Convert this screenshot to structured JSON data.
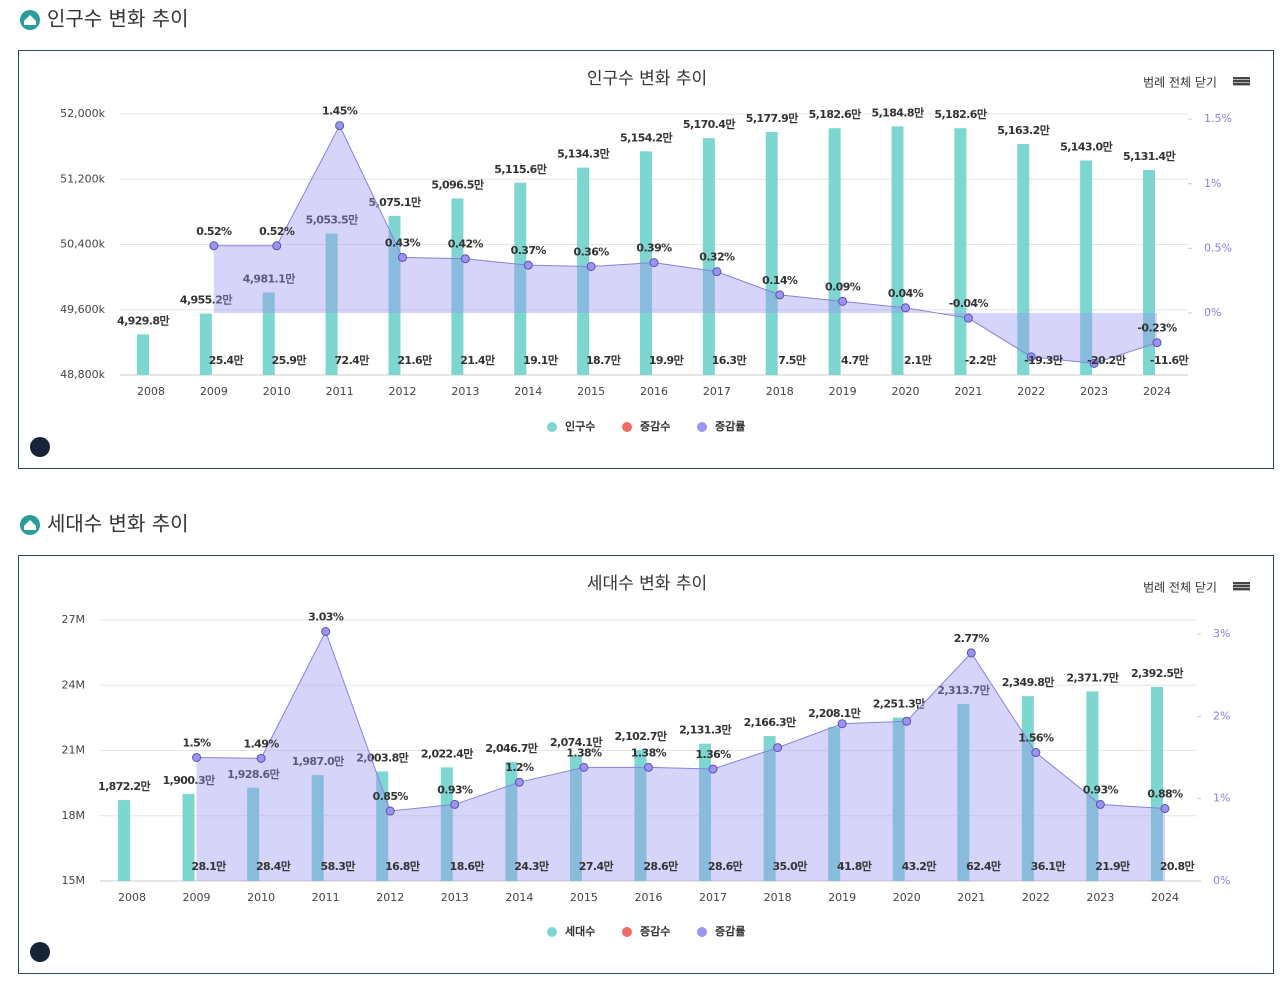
{
  "headings": [
    "인구수 변화 추이",
    "세대수 변화 추이"
  ],
  "chart_data": [
    {
      "type": "bar",
      "title": "인구수 변화 추이",
      "toolbar_button": "범례 전체 닫기",
      "categories": [
        "2008",
        "2009",
        "2010",
        "2011",
        "2012",
        "2013",
        "2014",
        "2015",
        "2016",
        "2017",
        "2018",
        "2019",
        "2020",
        "2021",
        "2022",
        "2023",
        "2024"
      ],
      "ylim": [
        48800,
        52000
      ],
      "yticks": [
        {
          "value": 48800,
          "label": "48,800k"
        },
        {
          "value": 49600,
          "label": "49,600k"
        },
        {
          "value": 50400,
          "label": "50,400k"
        },
        {
          "value": 51200,
          "label": "51,200k"
        },
        {
          "value": 52000,
          "label": "52,000k"
        }
      ],
      "y2lim": [
        -0.48,
        1.54
      ],
      "y2ticks": [
        {
          "value": 0,
          "label": "0%"
        },
        {
          "value": 0.5,
          "label": "0.5%"
        },
        {
          "value": 1,
          "label": "1%"
        },
        {
          "value": 1.5,
          "label": "1.5%"
        }
      ],
      "grid": true,
      "series": [
        {
          "name": "인구수",
          "type": "bar",
          "color": "#7dd6d0",
          "values": [
            49298,
            49552,
            49811,
            50535,
            50751,
            50965,
            51156,
            51343,
            51542,
            51704,
            51779,
            51826,
            51848,
            51826,
            51632,
            51430,
            51314
          ],
          "value_labels": [
            "4,929.8만",
            "4,955.2만",
            "4,981.1만",
            "5,053.5만",
            "5,075.1만",
            "5,096.5만",
            "5,115.6만",
            "5,134.3만",
            "5,154.2만",
            "5,170.4만",
            "5,177.9만",
            "5,182.6만",
            "5,184.8만",
            "5,182.6만",
            "5,163.2만",
            "5,143.0만",
            "5,131.4만"
          ]
        },
        {
          "name": "증감수",
          "type": "labels",
          "color": "#f06a6a",
          "values": [
            null,
            25.4,
            25.9,
            72.4,
            21.6,
            21.4,
            19.1,
            18.7,
            19.9,
            16.3,
            7.5,
            4.7,
            2.1,
            -2.2,
            -19.3,
            -20.2,
            -11.6
          ],
          "value_labels": [
            null,
            "25.4만",
            "25.9만",
            "72.4만",
            "21.6만",
            "21.4만",
            "19.1만",
            "18.7만",
            "19.9만",
            "16.3만",
            "7.5만",
            "4.7만",
            "2.1만",
            "-2.2만",
            "-19.3만",
            "-20.2만",
            "-11.6만"
          ]
        },
        {
          "name": "증감률",
          "type": "line",
          "axis": "y2",
          "color": "#9b94f0",
          "values": [
            null,
            0.52,
            0.52,
            1.45,
            0.43,
            0.42,
            0.37,
            0.36,
            0.39,
            0.32,
            0.14,
            0.09,
            0.04,
            -0.04,
            -0.34,
            -0.39,
            -0.23
          ],
          "value_labels": [
            null,
            "0.52%",
            "0.52%",
            "1.45%",
            "0.43%",
            "0.42%",
            "0.37%",
            "0.36%",
            "0.39%",
            "0.32%",
            "0.14%",
            "0.09%",
            "0.04%",
            "-0.04%",
            null,
            null,
            "-0.23%"
          ]
        }
      ]
    },
    {
      "type": "bar",
      "title": "세대수 변화 추이",
      "toolbar_button": "범례 전체 닫기",
      "categories": [
        "2008",
        "2009",
        "2010",
        "2011",
        "2012",
        "2013",
        "2014",
        "2015",
        "2016",
        "2017",
        "2018",
        "2019",
        "2020",
        "2021",
        "2022",
        "2023",
        "2024"
      ],
      "ylim": [
        15,
        27
      ],
      "yticks": [
        {
          "value": 15,
          "label": "15M"
        },
        {
          "value": 18,
          "label": "18M"
        },
        {
          "value": 21,
          "label": "21M"
        },
        {
          "value": 24,
          "label": "24M"
        },
        {
          "value": 27,
          "label": "27M"
        }
      ],
      "y2lim": [
        0,
        3.17
      ],
      "y2ticks": [
        {
          "value": 0,
          "label": "0%"
        },
        {
          "value": 1,
          "label": "1%"
        },
        {
          "value": 2,
          "label": "2%"
        },
        {
          "value": 3,
          "label": "3%"
        }
      ],
      "grid": true,
      "series": [
        {
          "name": "세대수",
          "type": "bar",
          "color": "#7dd6d0",
          "values": [
            18.722,
            19.003,
            19.286,
            19.87,
            20.038,
            20.224,
            20.467,
            20.741,
            21.027,
            21.313,
            21.663,
            22.081,
            22.513,
            23.137,
            23.498,
            23.717,
            23.925
          ],
          "value_labels": [
            "1,872.2만",
            "1,900.3만",
            "1,928.6만",
            "1,987.0만",
            "2,003.8만",
            "2,022.4만",
            "2,046.7만",
            "2,074.1만",
            "2,102.7만",
            "2,131.3만",
            "2,166.3만",
            "2,208.1만",
            "2,251.3만",
            "2,313.7만",
            "2,349.8만",
            "2,371.7만",
            "2,392.5만"
          ]
        },
        {
          "name": "증감수",
          "type": "labels",
          "color": "#f06a6a",
          "values": [
            null,
            28.1,
            28.4,
            58.3,
            16.8,
            18.6,
            24.3,
            27.4,
            28.6,
            28.6,
            35,
            41.8,
            43.2,
            62.4,
            36.1,
            21.9,
            20.8
          ],
          "value_labels": [
            null,
            "28.1만",
            "28.4만",
            "58.3만",
            "16.8만",
            "18.6만",
            "24.3만",
            "27.4만",
            "28.6만",
            "28.6만",
            "35.0만",
            "41.8만",
            "43.2만",
            "62.4만",
            "36.1만",
            "21.9만",
            "20.8만"
          ]
        },
        {
          "name": "증감률",
          "type": "line",
          "axis": "y2",
          "color": "#9b94f0",
          "values": [
            null,
            1.5,
            1.49,
            3.03,
            0.85,
            0.93,
            1.2,
            1.38,
            1.38,
            1.36,
            1.62,
            1.91,
            1.94,
            2.77,
            1.56,
            0.93,
            0.88
          ],
          "value_labels": [
            null,
            "1.5%",
            "1.49%",
            "3.03%",
            "0.85%",
            "0.93%",
            "1.2%",
            "1.38%",
            "1.38%",
            "1.36%",
            null,
            null,
            null,
            "2.77%",
            "1.56%",
            "0.93%",
            "0.88%"
          ]
        }
      ]
    }
  ]
}
